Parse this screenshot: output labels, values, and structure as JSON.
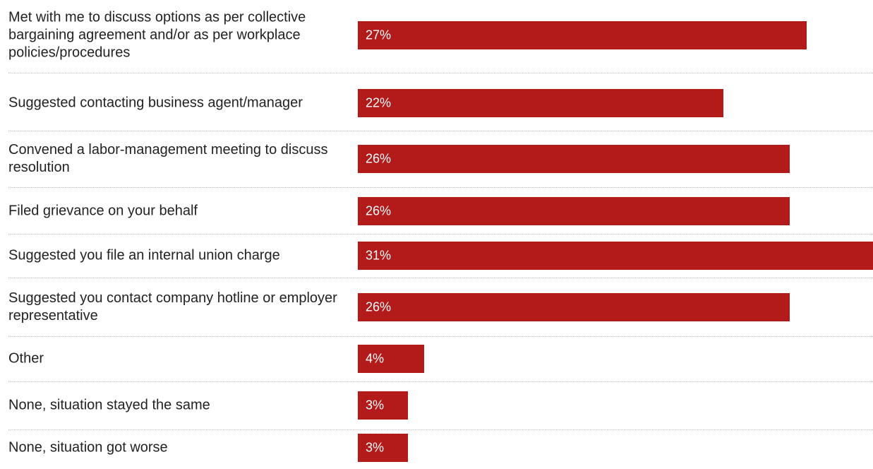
{
  "chart_data": {
    "type": "bar",
    "orientation": "horizontal",
    "title": "",
    "xlabel": "",
    "ylabel": "",
    "xlim": [
      0,
      31
    ],
    "grid": false,
    "bar_color": "#b31b1b",
    "categories": [
      "Met with me to discuss options as per collective bargaining agreement and/or as per workplace policies/procedures",
      "Suggested contacting business agent/manager",
      "Convened a labor-management meeting to discuss resolution",
      "Filed grievance on your behalf",
      "Suggested you file an internal union charge",
      "Suggested you contact company hotline or employer representative",
      "Other",
      "None, situation stayed the same",
      "None, situation got worse"
    ],
    "values": [
      27,
      22,
      26,
      26,
      31,
      26,
      4,
      3,
      3
    ],
    "value_labels": [
      "27%",
      "22%",
      "26%",
      "26%",
      "31%",
      "26%",
      "4%",
      "3%",
      "3%"
    ]
  }
}
